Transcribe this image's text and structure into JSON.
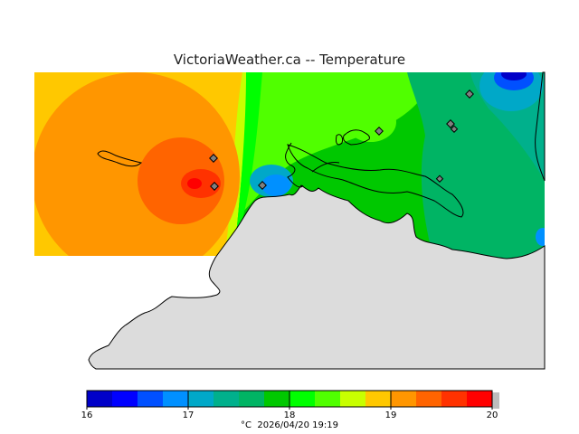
{
  "title": "VictoriaWeather.ca -- Temperature",
  "legend": {
    "colors": [
      "#00008c",
      "#0000c8",
      "#0000ff",
      "#0050ff",
      "#0090ff",
      "#00a8c8",
      "#00b08c",
      "#00b464",
      "#00c800",
      "#00ff00",
      "#50ff00",
      "#c8ff00",
      "#ffc800",
      "#ff9600",
      "#ff6400",
      "#ff3200",
      "#ff0000"
    ],
    "ticks": [
      "16",
      "17",
      "18",
      "19",
      "20"
    ],
    "unit": "°C",
    "timestamp": "2026/04/20 19:19"
  },
  "colors": {
    "land": "#dcdcdc",
    "outline": "#000000",
    "station_marker": "#808080"
  }
}
